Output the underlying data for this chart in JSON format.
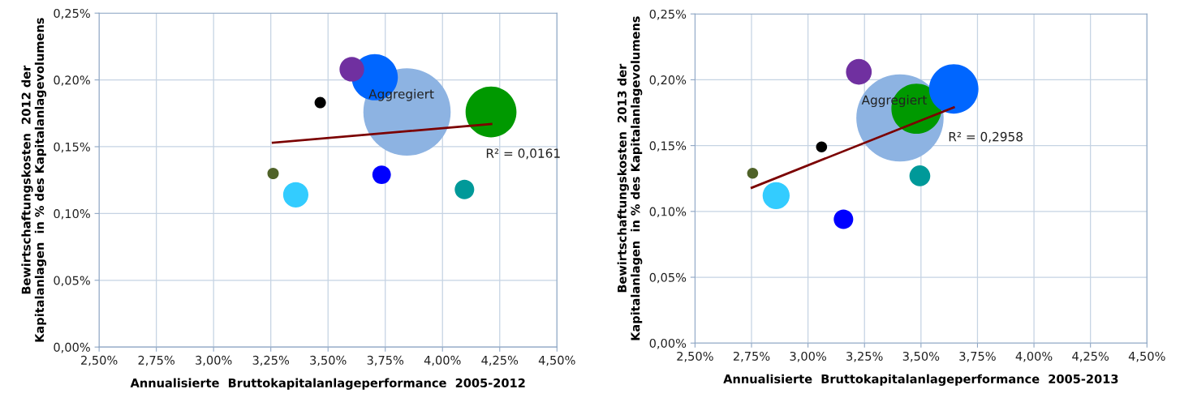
{
  "chart_data": [
    {
      "type": "bubble",
      "xlabel": "Annualisierte  Bruttokapitalanlageperformance  2005-2012",
      "ylabel": "Bewirtschaftungskosten  2012 der\nKapitalanlagen  in % des Kapitalanlagevolumens",
      "xlim": [
        2.5,
        4.5
      ],
      "ylim": [
        0,
        0.25
      ],
      "xticks": [
        {
          "value": 2.5,
          "label": "2,50%"
        },
        {
          "value": 2.75,
          "label": "2,75%"
        },
        {
          "value": 3.0,
          "label": "3,00%"
        },
        {
          "value": 3.25,
          "label": "3,25%"
        },
        {
          "value": 3.5,
          "label": "3,50%"
        },
        {
          "value": 3.75,
          "label": "3,75%"
        },
        {
          "value": 4.0,
          "label": "4,00%"
        },
        {
          "value": 4.25,
          "label": "4,25%"
        },
        {
          "value": 4.5,
          "label": "4,50%"
        }
      ],
      "yticks": [
        {
          "value": 0,
          "label": "0,00%"
        },
        {
          "value": 0.05,
          "label": "0,05%"
        },
        {
          "value": 0.1,
          "label": "0,10%"
        },
        {
          "value": 0.15,
          "label": "0,15%"
        },
        {
          "value": 0.2,
          "label": "0,20%"
        },
        {
          "value": 0.25,
          "label": "0,25%"
        }
      ],
      "grid": true,
      "series": [
        {
          "marker": "circle",
          "x": [
            3.845,
            3.704,
            3.604,
            4.212,
            3.466,
            3.26,
            3.359,
            3.734,
            4.096
          ],
          "values": [
            0.176,
            0.202,
            0.208,
            0.176,
            0.183,
            0.13,
            0.114,
            0.129,
            0.118
          ],
          "sizes": [
            1,
            0.28,
            0.08,
            0.34,
            0.017,
            0.017,
            0.084,
            0.045,
            0.05
          ],
          "colors": [
            "#8db3e2",
            "#0066ff",
            "#7030a0",
            "#009900",
            "#000000",
            "#4f6228",
            "#33ccff",
            "#0000ff",
            "#009999"
          ]
        },
        {
          "type": "line",
          "x": [
            3.259,
            4.213
          ],
          "values": [
            0.153,
            0.167
          ],
          "color": "#7b0000"
        }
      ],
      "annotations": [
        {
          "text": "Aggregiert",
          "x": 3.845,
          "y": 0.176
        },
        {
          "text": "R² = 0,0161",
          "x": 4.213,
          "y": 0.167
        }
      ]
    },
    {
      "type": "bubble",
      "xlabel": "Annualisierte  Bruttokapitalanlageperformance  2005-2013",
      "ylabel": "Bewirtschaftungskosten  2013 der\nKapitalanlagen  in % des Kapitalanlagevolumens",
      "xlim": [
        2.5,
        4.5
      ],
      "ylim": [
        0,
        0.25
      ],
      "xticks": [
        {
          "value": 2.5,
          "label": "2,50%"
        },
        {
          "value": 2.75,
          "label": "2,75%"
        },
        {
          "value": 3.0,
          "label": "3,00%"
        },
        {
          "value": 3.25,
          "label": "3,25%"
        },
        {
          "value": 3.5,
          "label": "3,50%"
        },
        {
          "value": 3.75,
          "label": "3,75%"
        },
        {
          "value": 4.0,
          "label": "4,00%"
        },
        {
          "value": 4.25,
          "label": "4,25%"
        },
        {
          "value": 4.5,
          "label": "4,50%"
        }
      ],
      "yticks": [
        {
          "value": 0,
          "label": "0,00%"
        },
        {
          "value": 0.05,
          "label": "0,05%"
        },
        {
          "value": 0.1,
          "label": "0,10%"
        },
        {
          "value": 0.15,
          "label": "0,15%"
        },
        {
          "value": 0.2,
          "label": "0,20%"
        },
        {
          "value": 0.25,
          "label": "0,25%"
        }
      ],
      "grid": true,
      "series": [
        {
          "marker": "circle",
          "x": [
            3.407,
            3.645,
            3.225,
            3.48,
            3.06,
            2.755,
            2.859,
            3.157,
            3.495
          ],
          "values": [
            0.171,
            0.193,
            0.206,
            0.178,
            0.149,
            0.129,
            0.112,
            0.094,
            0.127
          ],
          "sizes": [
            1,
            0.32,
            0.087,
            0.33,
            0.016,
            0.016,
            0.096,
            0.05,
            0.057
          ],
          "colors": [
            "#8db3e2",
            "#0066ff",
            "#7030a0",
            "#009900",
            "#000000",
            "#4f6228",
            "#33ccff",
            "#0000ff",
            "#009999"
          ]
        },
        {
          "type": "line",
          "x": [
            2.751,
            3.645
          ],
          "values": [
            0.118,
            0.179
          ],
          "color": "#7b0000"
        }
      ],
      "annotations": [
        {
          "text": "Aggregiert",
          "x": 3.407,
          "y": 0.171
        },
        {
          "text": "R² = 0,2958",
          "x": 3.645,
          "y": 0.179
        }
      ]
    }
  ]
}
